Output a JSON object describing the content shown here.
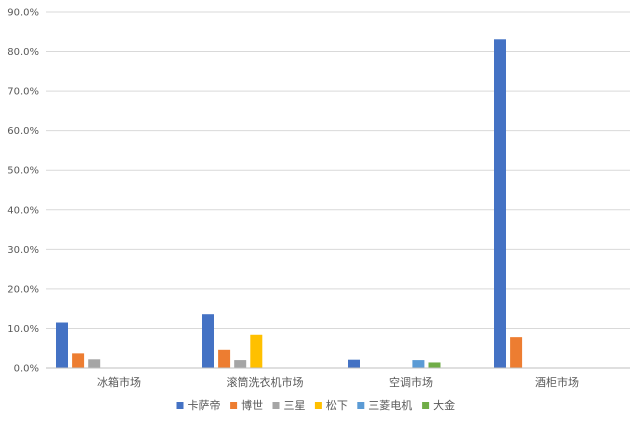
{
  "chart_data": {
    "type": "bar",
    "categories": [
      "冰箱市场",
      "滚筒洗衣机市场",
      "空调市场",
      "酒柜市场"
    ],
    "series": [
      {
        "name": "卡萨帝",
        "color": "#4472C4",
        "values": [
          11.5,
          13.6,
          2.1,
          83.1
        ]
      },
      {
        "name": "博世",
        "color": "#ED7D31",
        "values": [
          3.7,
          4.6,
          0,
          7.8
        ]
      },
      {
        "name": "三星",
        "color": "#A5A5A5",
        "values": [
          2.2,
          2.0,
          0,
          0
        ]
      },
      {
        "name": "松下",
        "color": "#FFC000",
        "values": [
          0,
          8.4,
          0,
          0
        ]
      },
      {
        "name": "三菱电机",
        "color": "#5B9BD5",
        "values": [
          0,
          0,
          2.0,
          0
        ]
      },
      {
        "name": "大金",
        "color": "#70AD47",
        "values": [
          0,
          0,
          1.4,
          0
        ]
      }
    ],
    "yticks": [
      "0.0%",
      "10.0%",
      "20.0%",
      "30.0%",
      "40.0%",
      "50.0%",
      "60.0%",
      "70.0%",
      "80.0%",
      "90.0%"
    ],
    "ylim": [
      0,
      90
    ],
    "grid": true,
    "legend_position": "bottom"
  }
}
